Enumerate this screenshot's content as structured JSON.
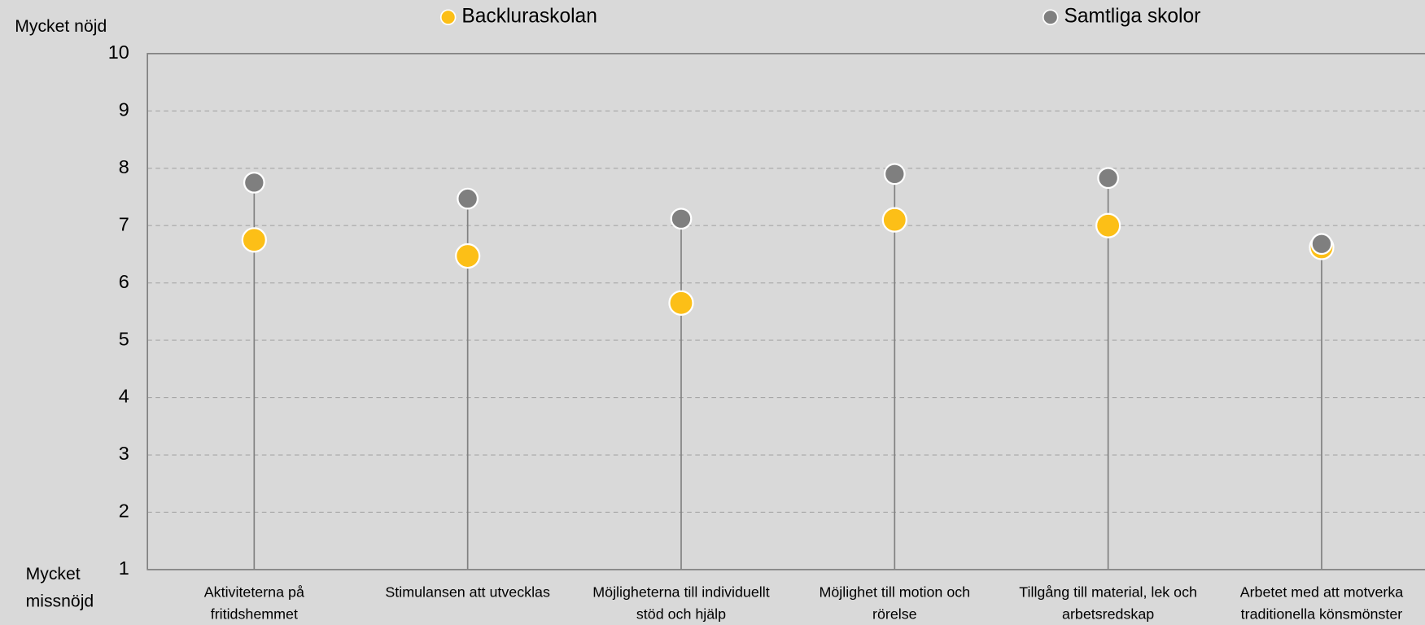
{
  "chart_data": {
    "type": "dot",
    "y_label_top": "Mycket nöjd",
    "y_label_bottom": [
      "Mycket",
      "missnöjd"
    ],
    "categories": [
      [
        "Aktiviteterna på",
        "fritidshemmet"
      ],
      [
        "Stimulansen att utvecklas"
      ],
      [
        "Möjligheterna till individuellt",
        "stöd och hjälp"
      ],
      [
        "Möjlighet till motion och",
        "rörelse"
      ],
      [
        "Tillgång till material, lek och",
        "arbetsredskap"
      ],
      [
        "Arbetet med att motverka",
        "traditionella könsmönster"
      ]
    ],
    "series": [
      {
        "name": "Samtliga skolor",
        "color": "#7f7f7f",
        "values": [
          7.75,
          7.47,
          7.12,
          7.9,
          7.83,
          6.68
        ]
      },
      {
        "name": "Backluraskolan",
        "color": "#fcbf17",
        "values": [
          6.75,
          6.47,
          5.65,
          7.1,
          7.0,
          6.62
        ]
      }
    ],
    "ylim": [
      1,
      10
    ],
    "yticks": [
      1,
      2,
      3,
      4,
      5,
      6,
      7,
      8,
      9,
      10
    ],
    "grid": true
  }
}
